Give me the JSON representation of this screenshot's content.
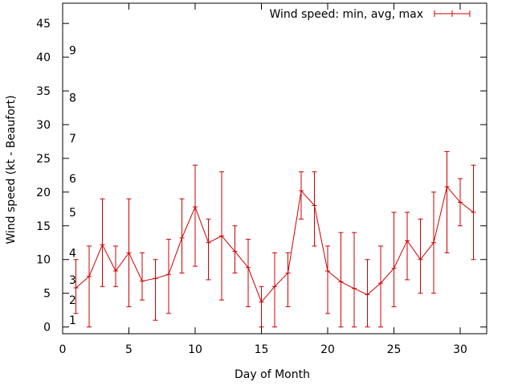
{
  "chart_data": {
    "type": "line",
    "xlabel": "Day of Month",
    "ylabel": "Wind speed (kt - Beaufort)",
    "xlim": [
      0,
      32
    ],
    "ylim": [
      -1,
      48
    ],
    "x_ticks": [
      "0",
      "5",
      "10",
      "15",
      "20",
      "25",
      "30"
    ],
    "x_tick_values": [
      0,
      5,
      10,
      15,
      20,
      25,
      30
    ],
    "y_ticks": [
      "0",
      "5",
      "10",
      "15",
      "20",
      "25",
      "30",
      "35",
      "40",
      "45"
    ],
    "y_tick_values": [
      0,
      5,
      10,
      15,
      20,
      25,
      30,
      35,
      40,
      45
    ],
    "beaufort_labels": [
      {
        "label": "1",
        "y": 1
      },
      {
        "label": "2",
        "y": 4
      },
      {
        "label": "3",
        "y": 7
      },
      {
        "label": "4",
        "y": 11
      },
      {
        "label": "5",
        "y": 17
      },
      {
        "label": "6",
        "y": 22
      },
      {
        "label": "7",
        "y": 28
      },
      {
        "label": "8",
        "y": 34
      },
      {
        "label": "9",
        "y": 41
      }
    ],
    "grid": false,
    "legend_position": "top-right",
    "series_color": "#cc0000",
    "series": [
      {
        "name": "Wind speed: min, avg, max",
        "x": [
          1,
          2,
          3,
          4,
          5,
          6,
          7,
          8,
          9,
          10,
          11,
          12,
          13,
          14,
          15,
          16,
          17,
          18,
          19,
          20,
          21,
          22,
          23,
          24,
          25,
          26,
          27,
          28,
          29,
          30,
          31
        ],
        "avg": [
          5.8,
          7.5,
          12.2,
          8.3,
          11,
          6.8,
          7.2,
          7.8,
          13.2,
          17.8,
          12.5,
          13.5,
          11.2,
          8.8,
          3.7,
          6,
          8,
          20.2,
          18,
          8.3,
          6.7,
          5.7,
          4.8,
          6.5,
          8.7,
          12.8,
          10,
          12.5,
          20.8,
          18.5,
          17
        ],
        "min": [
          2,
          0,
          6,
          6,
          3,
          4,
          1,
          2,
          8,
          9,
          7,
          4,
          8,
          3,
          0,
          0,
          3,
          16,
          12,
          2,
          0,
          0,
          0,
          0,
          3,
          7,
          5,
          5,
          11,
          15,
          10
        ],
        "max": [
          10,
          12,
          19,
          12,
          19,
          11,
          10,
          13,
          19,
          24,
          16,
          23,
          15,
          13,
          6,
          11,
          11,
          23,
          23,
          12,
          14,
          14,
          10,
          12,
          17,
          17,
          16,
          20,
          26,
          22,
          24
        ]
      }
    ]
  }
}
